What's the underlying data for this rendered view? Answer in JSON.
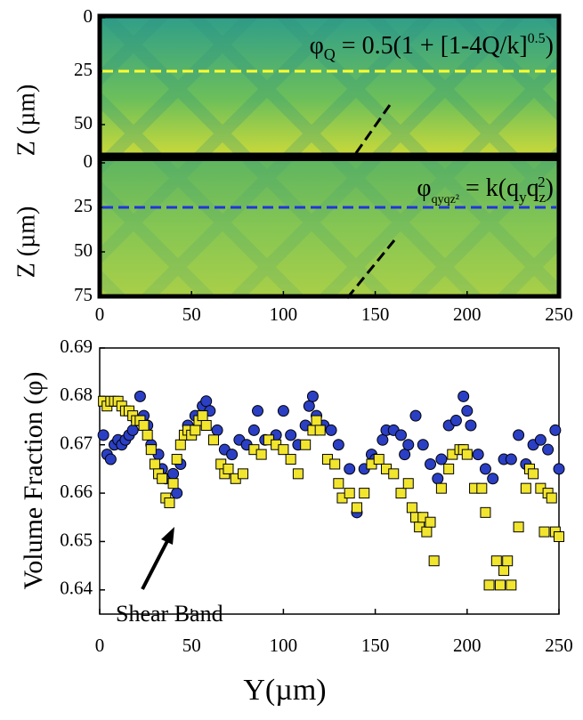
{
  "chart_data": [
    {
      "type": "heatmap",
      "ylabel": "Z (µm)",
      "ylim": [
        0,
        65
      ],
      "yticks": [
        0,
        25,
        50
      ],
      "xlim": [
        0,
        250
      ],
      "hline": 25,
      "hline_color": "#ffff30",
      "annotation": [
        "φ",
        "Q",
        " = 0.5(1 + [1-4Q/k]",
        "0.5",
        ")"
      ]
    },
    {
      "type": "heatmap",
      "ylabel": "Z (µm)",
      "ylim": [
        0,
        75
      ],
      "yticks": [
        0,
        25,
        50,
        75
      ],
      "xlim": [
        0,
        250
      ],
      "xticks": [
        0,
        50,
        100,
        150,
        200,
        250
      ],
      "hline": 25,
      "hline_color": "#2233dd",
      "annotation": [
        "φ",
        "qyqz²",
        " = k(q",
        "y",
        "q",
        "z",
        "2",
        ")"
      ]
    },
    {
      "type": "scatter",
      "xlabel": "Y(µm)",
      "ylabel": "Volume Fraction (φ)",
      "xlim": [
        0,
        250
      ],
      "xticks": [
        0,
        50,
        100,
        150,
        200,
        250
      ],
      "ylim": [
        0.635,
        0.69
      ],
      "yticks": [
        0.64,
        0.65,
        0.66,
        0.67,
        0.68,
        0.69
      ],
      "annotation": "Shear Band",
      "series": [
        {
          "color": "#2a3fc4",
          "marker": "circle",
          "x": [
            2,
            4,
            6,
            8,
            10,
            12,
            14,
            16,
            18,
            20,
            22,
            24,
            26,
            28,
            32,
            34,
            36,
            38,
            40,
            42,
            44,
            48,
            52,
            56,
            58,
            60,
            64,
            68,
            72,
            76,
            80,
            84,
            86,
            90,
            96,
            100,
            104,
            108,
            112,
            114,
            116,
            118,
            122,
            126,
            130,
            136,
            140,
            144,
            148,
            150,
            154,
            156,
            160,
            164,
            166,
            168,
            172,
            176,
            180,
            184,
            186,
            190,
            194,
            198,
            200,
            202,
            206,
            210,
            214,
            220,
            224,
            228,
            232,
            236,
            240,
            244,
            248,
            250
          ],
          "values": [
            0.672,
            0.668,
            0.667,
            0.67,
            0.671,
            0.67,
            0.671,
            0.672,
            0.673,
            0.675,
            0.68,
            0.676,
            0.674,
            0.67,
            0.668,
            0.665,
            0.663,
            0.663,
            0.664,
            0.66,
            0.666,
            0.674,
            0.676,
            0.678,
            0.679,
            0.677,
            0.673,
            0.669,
            0.668,
            0.671,
            0.67,
            0.673,
            0.677,
            0.671,
            0.672,
            0.677,
            0.672,
            0.67,
            0.674,
            0.678,
            0.68,
            0.676,
            0.674,
            0.673,
            0.67,
            0.665,
            0.656,
            0.665,
            0.668,
            0.667,
            0.671,
            0.673,
            0.673,
            0.672,
            0.668,
            0.67,
            0.676,
            0.67,
            0.666,
            0.663,
            0.667,
            0.674,
            0.675,
            0.68,
            0.677,
            0.674,
            0.668,
            0.665,
            0.663,
            0.667,
            0.667,
            0.672,
            0.666,
            0.67,
            0.671,
            0.669,
            0.673,
            0.665
          ]
        },
        {
          "color": "#f2e52e",
          "marker": "square",
          "x": [
            2,
            4,
            6,
            8,
            10,
            12,
            14,
            16,
            18,
            20,
            22,
            24,
            26,
            28,
            30,
            32,
            34,
            36,
            38,
            40,
            42,
            44,
            46,
            48,
            50,
            52,
            54,
            56,
            58,
            62,
            66,
            68,
            70,
            74,
            78,
            84,
            88,
            92,
            96,
            100,
            104,
            108,
            112,
            116,
            118,
            120,
            124,
            128,
            130,
            132,
            136,
            140,
            144,
            148,
            152,
            156,
            160,
            164,
            168,
            170,
            172,
            174,
            176,
            178,
            180,
            182,
            186,
            190,
            192,
            196,
            198,
            200,
            204,
            208,
            210,
            212,
            216,
            218,
            220,
            222,
            224,
            228,
            232,
            234,
            236,
            240,
            242,
            244,
            246,
            248,
            250
          ],
          "values": [
            0.679,
            0.678,
            0.679,
            0.679,
            0.679,
            0.678,
            0.677,
            0.677,
            0.676,
            0.675,
            0.675,
            0.674,
            0.672,
            0.669,
            0.666,
            0.664,
            0.663,
            0.659,
            0.658,
            0.662,
            0.667,
            0.67,
            0.672,
            0.673,
            0.672,
            0.673,
            0.675,
            0.676,
            0.674,
            0.671,
            0.666,
            0.664,
            0.665,
            0.663,
            0.664,
            0.669,
            0.668,
            0.671,
            0.67,
            0.669,
            0.667,
            0.664,
            0.67,
            0.673,
            0.675,
            0.673,
            0.667,
            0.666,
            0.662,
            0.659,
            0.66,
            0.657,
            0.66,
            0.666,
            0.667,
            0.665,
            0.664,
            0.66,
            0.662,
            0.657,
            0.655,
            0.653,
            0.655,
            0.652,
            0.654,
            0.646,
            0.661,
            0.665,
            0.668,
            0.669,
            0.669,
            0.668,
            0.661,
            0.661,
            0.656,
            0.641,
            0.646,
            0.641,
            0.644,
            0.646,
            0.641,
            0.653,
            0.661,
            0.665,
            0.664,
            0.661,
            0.652,
            0.66,
            0.659,
            0.652,
            0.651
          ]
        }
      ]
    }
  ]
}
